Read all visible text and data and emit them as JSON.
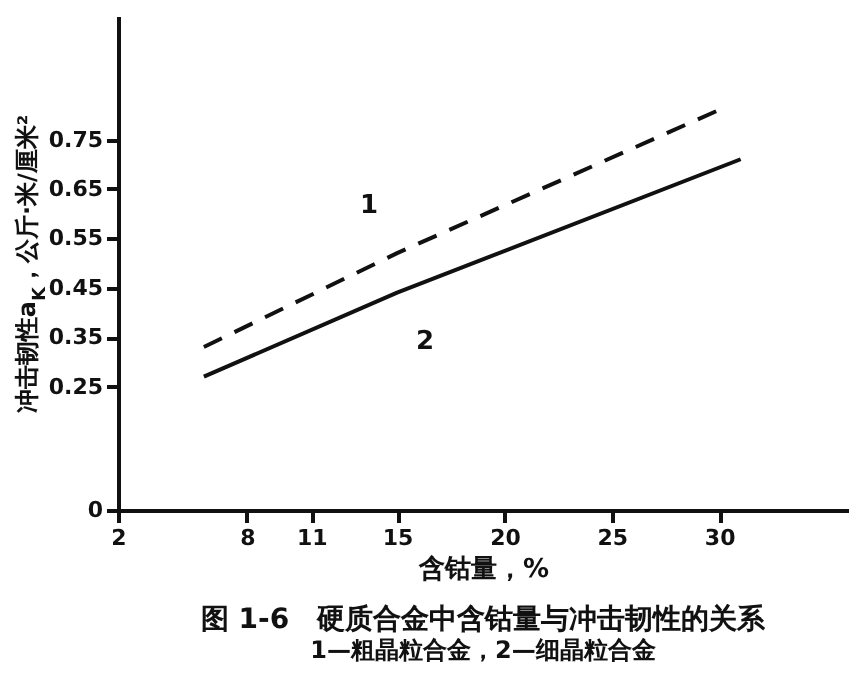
{
  "chart_data": {
    "type": "line",
    "title": "图 1-6　硬质合金中含钴量与冲击韧性的关系",
    "subtitle": "1—粗晶粒合金，2—细晶粒合金",
    "xlabel": "含钴量，%",
    "ylabel": "冲击韧性a$_{K}$，公斤·米/厘米²",
    "xlim": [
      2,
      36
    ],
    "xticks": [
      2,
      8,
      11,
      15,
      20,
      25,
      30
    ],
    "ylim": [
      0,
      1.0
    ],
    "yticks": [
      0,
      0.25,
      0.35,
      0.45,
      0.55,
      0.65,
      0.75
    ],
    "series": [
      {
        "name": "1",
        "color": "#111111",
        "line_style": "dashed",
        "x": [
          6,
          15,
          30
        ],
        "values": [
          0.33,
          0.52,
          0.81
        ]
      },
      {
        "name": "2",
        "color": "#111111",
        "line_style": "solid",
        "x": [
          6,
          15,
          31
        ],
        "values": [
          0.27,
          0.44,
          0.71
        ]
      }
    ]
  }
}
